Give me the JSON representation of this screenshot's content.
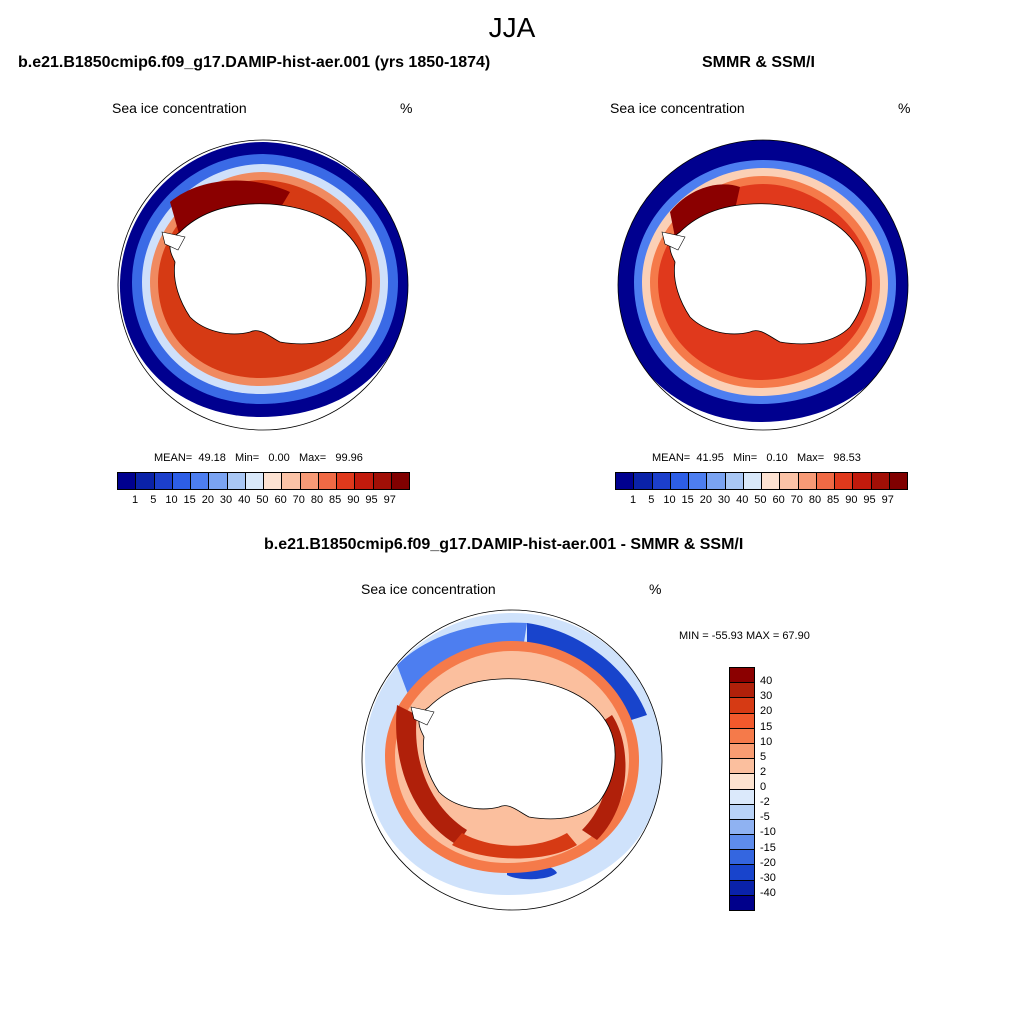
{
  "figure": {
    "season": "JJA",
    "units_label": "%",
    "panels": [
      {
        "id": "model",
        "title": "b.e21.B1850cmip6.f09_g17.DAMIP-hist-aer.001 (yrs 1850-1874)",
        "variable": "Sea ice concentration",
        "units": "%",
        "stats": {
          "mean_label": "MEAN=",
          "mean": "49.18",
          "min_label": "Min=",
          "min": "0.00",
          "max_label": "Max=",
          "max": "99.96"
        }
      },
      {
        "id": "obs",
        "title": "SMMR & SSM/I",
        "variable": "Sea ice concentration",
        "units": "%",
        "stats": {
          "mean_label": "MEAN=",
          "mean": "41.95",
          "min_label": "Min=",
          "min": "0.10",
          "max_label": "Max=",
          "max": "98.53"
        }
      },
      {
        "id": "diff",
        "title": "b.e21.B1850cmip6.f09_g17.DAMIP-hist-aer.001 - SMMR & SSM/I",
        "variable": "Sea ice concentration",
        "units": "%",
        "stats_text": "MIN = -55.93 MAX =  67.90"
      }
    ],
    "concentration_colorbar": {
      "labels": [
        "1",
        "5",
        "10",
        "15",
        "20",
        "30",
        "40",
        "50",
        "60",
        "70",
        "80",
        "85",
        "90",
        "95",
        "97"
      ],
      "colors": [
        "#00008f",
        "#0a22a8",
        "#1c3fcb",
        "#2d5ee6",
        "#4d7ef0",
        "#7aa3f2",
        "#a9c7f5",
        "#d9e8fa",
        "#fde2d2",
        "#fbc3a7",
        "#f79a76",
        "#f06a45",
        "#e0391c",
        "#c21a0c",
        "#a10f06",
        "#800000"
      ]
    },
    "difference_colorbar": {
      "labels": [
        "40",
        "30",
        "20",
        "15",
        "10",
        "5",
        "2",
        "0",
        "-2",
        "-5",
        "-10",
        "-15",
        "-20",
        "-30",
        "-40"
      ],
      "colors": [
        "#8b0000",
        "#b0200a",
        "#d63a14",
        "#f2592c",
        "#f57a4a",
        "#f89c72",
        "#fbbf9e",
        "#fde3d0",
        "#dbe9fb",
        "#b8d2f7",
        "#8fb2f2",
        "#5e8cec",
        "#3466e0",
        "#1844cc",
        "#0a22aa",
        "#00008b"
      ]
    }
  }
}
